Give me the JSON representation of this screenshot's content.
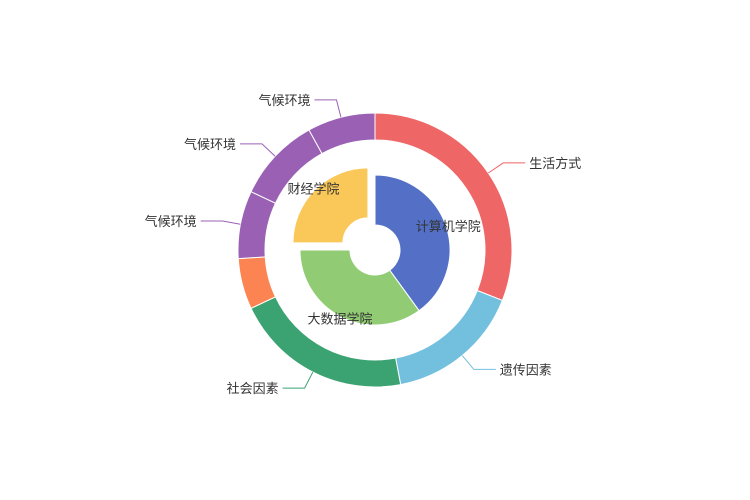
{
  "chart_data": {
    "type": "pie",
    "series": [
      {
        "ring": "inner",
        "slices": [
          {
            "label": "计算机学院",
            "value": 40,
            "color": "#5470c6"
          },
          {
            "label": "大数据学院",
            "value": 35,
            "color": "#91cc75"
          },
          {
            "label": "财经学院",
            "value": 25,
            "color": "#fac858",
            "selected": true
          }
        ]
      },
      {
        "ring": "outer",
        "slices": [
          {
            "label": "生活方式",
            "value": 31,
            "color": "#ee6666"
          },
          {
            "label": "遗传因素",
            "value": 16,
            "color": "#73c0de"
          },
          {
            "label": "社会因素",
            "value": 21,
            "color": "#3ba272"
          },
          {
            "label": "",
            "value": 6,
            "color": "#fc8452"
          },
          {
            "label": "气候环境",
            "value": 8,
            "color": "#9a60b4"
          },
          {
            "label": "气候环境",
            "value": 10,
            "color": "#9a60b4"
          },
          {
            "label": "气候环境",
            "value": 8,
            "color": "#9a60b4"
          }
        ]
      }
    ]
  }
}
